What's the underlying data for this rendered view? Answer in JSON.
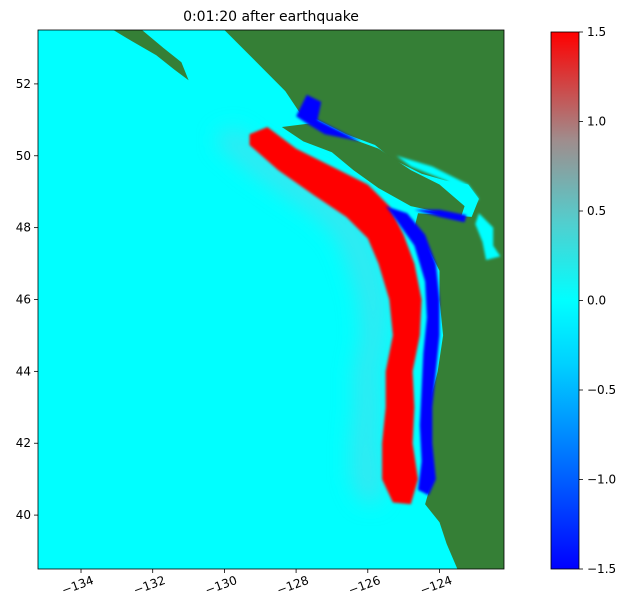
{
  "chart_data": {
    "type": "heatmap",
    "title": "0:01:20 after earthquake",
    "xlabel": "",
    "ylabel": "",
    "xlim": [
      -135.2,
      -122.2
    ],
    "ylim": [
      38.5,
      53.5
    ],
    "x_ticks": [
      -134,
      -132,
      -130,
      -128,
      -126,
      -124
    ],
    "x_tick_labels": [
      "−134",
      "−132",
      "−130",
      "−128",
      "−126",
      "−124"
    ],
    "y_ticks": [
      40,
      42,
      44,
      46,
      48,
      50,
      52
    ],
    "y_tick_labels": [
      "40",
      "42",
      "44",
      "46",
      "48",
      "50",
      "52"
    ],
    "colorbar": {
      "range": [
        -1.5,
        1.5
      ],
      "ticks": [
        -1.5,
        -1.0,
        -0.5,
        0.0,
        0.5,
        1.0,
        1.5
      ],
      "tick_labels": [
        "−1.5",
        "−1.0",
        "−0.5",
        "0.0",
        "0.5",
        "1.0",
        "1.5"
      ],
      "colors": [
        "#0000ff",
        "#00c8ff",
        "#00ffff",
        "#9a9a9a",
        "#ff0000"
      ]
    },
    "colors": {
      "ocean": "#00ffff",
      "land": "#357f36",
      "positive": "#ff0000",
      "negative": "#0000ff"
    },
    "regions": [
      {
        "name": "uplift-crest",
        "value": 1.5,
        "color": "#ff0000",
        "points": [
          [
            -129.3,
            50.6
          ],
          [
            -128.8,
            50.8
          ],
          [
            -128.0,
            50.2
          ],
          [
            -127.0,
            49.7
          ],
          [
            -126.0,
            49.2
          ],
          [
            -125.4,
            48.6
          ],
          [
            -125.0,
            47.8
          ],
          [
            -124.7,
            47.0
          ],
          [
            -124.5,
            46.0
          ],
          [
            -124.55,
            45.0
          ],
          [
            -124.75,
            44.0
          ],
          [
            -124.7,
            43.0
          ],
          [
            -124.75,
            42.0
          ],
          [
            -124.6,
            41.0
          ],
          [
            -124.8,
            40.3
          ],
          [
            -125.3,
            40.35
          ],
          [
            -125.6,
            41.0
          ],
          [
            -125.6,
            42.0
          ],
          [
            -125.5,
            43.0
          ],
          [
            -125.5,
            44.0
          ],
          [
            -125.3,
            45.0
          ],
          [
            -125.4,
            46.0
          ],
          [
            -125.7,
            47.0
          ],
          [
            -126.0,
            47.7
          ],
          [
            -126.6,
            48.3
          ],
          [
            -127.5,
            48.9
          ],
          [
            -128.5,
            49.6
          ],
          [
            -129.3,
            50.3
          ]
        ]
      },
      {
        "name": "subsidence-trough",
        "value": -1.5,
        "color": "#0000ff",
        "points": [
          [
            -125.5,
            48.6
          ],
          [
            -124.9,
            48.4
          ],
          [
            -124.4,
            47.8
          ],
          [
            -124.1,
            47.0
          ],
          [
            -124.0,
            46.0
          ],
          [
            -124.0,
            45.0
          ],
          [
            -124.1,
            44.0
          ],
          [
            -124.2,
            43.0
          ],
          [
            -124.2,
            42.0
          ],
          [
            -124.1,
            41.0
          ],
          [
            -124.3,
            40.55
          ],
          [
            -124.6,
            40.7
          ],
          [
            -124.5,
            41.5
          ],
          [
            -124.55,
            42.5
          ],
          [
            -124.5,
            43.5
          ],
          [
            -124.45,
            44.5
          ],
          [
            -124.35,
            45.5
          ],
          [
            -124.4,
            46.5
          ],
          [
            -124.7,
            47.5
          ],
          [
            -125.2,
            48.2
          ]
        ]
      },
      {
        "name": "juan-de-fuca-trough",
        "value": -1.5,
        "color": "#0000ff",
        "points": [
          [
            -124.7,
            48.5
          ],
          [
            -124.0,
            48.3
          ],
          [
            -123.3,
            48.15
          ],
          [
            -123.25,
            48.35
          ],
          [
            -124.0,
            48.5
          ]
        ]
      },
      {
        "name": "queen-charlotte-trough",
        "value": -1.5,
        "color": "#0000ff",
        "points": [
          [
            -128.0,
            51.1
          ],
          [
            -127.7,
            51.7
          ],
          [
            -127.3,
            51.5
          ],
          [
            -127.4,
            51.0
          ],
          [
            -126.8,
            50.7
          ],
          [
            -126.2,
            50.4
          ],
          [
            -127.2,
            50.6
          ],
          [
            -127.7,
            50.9
          ]
        ]
      },
      {
        "name": "strait-of-georgia",
        "value": 0.0,
        "color": "#00ffff",
        "points": [
          [
            -125.2,
            50.0
          ],
          [
            -124.2,
            49.7
          ],
          [
            -123.2,
            49.2
          ],
          [
            -122.9,
            48.8
          ],
          [
            -123.1,
            48.6
          ],
          [
            -123.8,
            49.3
          ],
          [
            -124.8,
            49.7
          ]
        ]
      },
      {
        "name": "puget-sound",
        "value": 0.0,
        "color": "#00ffff",
        "points": [
          [
            -122.9,
            48.4
          ],
          [
            -122.5,
            48.0
          ],
          [
            -122.5,
            47.5
          ],
          [
            -122.3,
            47.2
          ],
          [
            -122.7,
            47.1
          ],
          [
            -122.8,
            47.6
          ],
          [
            -123.0,
            48.1
          ]
        ]
      }
    ],
    "land": [
      {
        "name": "mainland",
        "points": [
          [
            -122.2,
            53.5
          ],
          [
            -130.0,
            53.5
          ],
          [
            -129.0,
            52.5
          ],
          [
            -128.3,
            51.8
          ],
          [
            -127.9,
            51.2
          ],
          [
            -127.4,
            51.0
          ],
          [
            -126.6,
            50.6
          ],
          [
            -125.8,
            50.3
          ],
          [
            -125.3,
            49.9
          ],
          [
            -124.5,
            49.5
          ],
          [
            -123.8,
            49.3
          ],
          [
            -123.2,
            49.2
          ],
          [
            -122.9,
            48.8
          ],
          [
            -123.1,
            48.3
          ],
          [
            -124.6,
            48.4
          ],
          [
            -124.7,
            48.0
          ],
          [
            -124.3,
            47.4
          ],
          [
            -124.0,
            46.8
          ],
          [
            -124.0,
            46.0
          ],
          [
            -123.9,
            45.0
          ],
          [
            -124.05,
            44.0
          ],
          [
            -124.3,
            43.0
          ],
          [
            -124.35,
            42.0
          ],
          [
            -124.2,
            41.0
          ],
          [
            -124.4,
            40.3
          ],
          [
            -124.0,
            39.8
          ],
          [
            -123.8,
            39.2
          ],
          [
            -123.5,
            38.5
          ],
          [
            -122.2,
            38.5
          ]
        ]
      },
      {
        "name": "vancouver-island",
        "points": [
          [
            -128.4,
            50.8
          ],
          [
            -127.8,
            50.4
          ],
          [
            -127.0,
            50.1
          ],
          [
            -126.4,
            49.6
          ],
          [
            -125.7,
            49.1
          ],
          [
            -124.8,
            48.6
          ],
          [
            -123.4,
            48.3
          ],
          [
            -123.3,
            48.6
          ],
          [
            -124.0,
            49.2
          ],
          [
            -124.8,
            49.6
          ],
          [
            -125.7,
            50.2
          ],
          [
            -126.8,
            50.6
          ],
          [
            -127.6,
            50.9
          ]
        ]
      },
      {
        "name": "haida-gwaii",
        "points": [
          [
            -133.1,
            53.5
          ],
          [
            -132.3,
            53.5
          ],
          [
            -131.7,
            53.0
          ],
          [
            -131.2,
            52.6
          ],
          [
            -131.0,
            52.1
          ],
          [
            -131.4,
            52.4
          ],
          [
            -131.9,
            52.8
          ],
          [
            -132.6,
            53.2
          ]
        ]
      }
    ]
  }
}
